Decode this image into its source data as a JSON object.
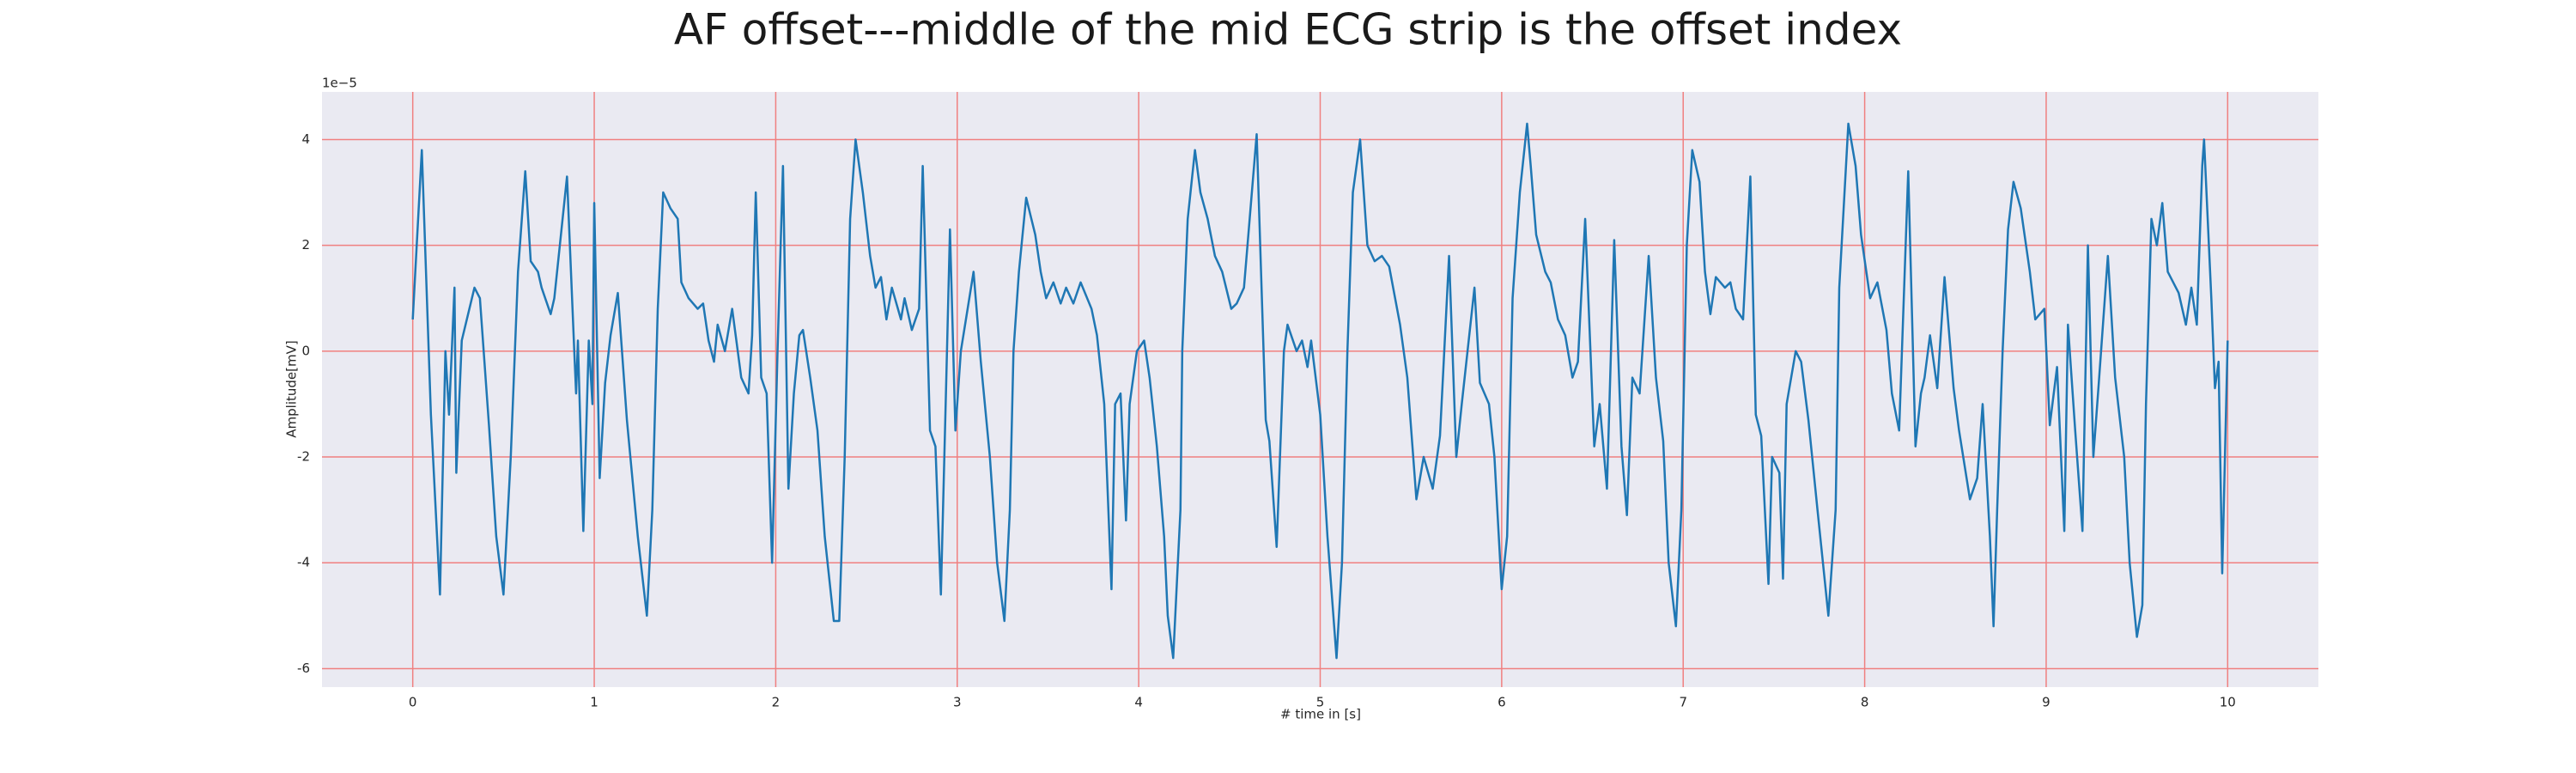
{
  "chart_data": {
    "type": "line",
    "title": "AF offset---middle of the mid ECG strip is the offset index",
    "xlabel": "# time in [s]",
    "ylabel": "Amplitude[mV]",
    "y_offset_text": "1e−5",
    "color": "#1f77b4",
    "grid": true,
    "grid_color": "#f08080",
    "xlim": [
      -0.5,
      10.5
    ],
    "ylim": [
      -6.35,
      4.9
    ],
    "xticks": [
      0,
      1,
      2,
      3,
      4,
      5,
      6,
      7,
      8,
      9,
      10
    ],
    "yticks": [
      -6,
      -4,
      -2,
      0,
      2,
      4
    ],
    "x": [
      0,
      0.05,
      0.1,
      0.15,
      0.18,
      0.2,
      0.23,
      0.24,
      0.27,
      0.34,
      0.37,
      0.42,
      0.46,
      0.5,
      0.54,
      0.58,
      0.62,
      0.65,
      0.69,
      0.71,
      0.76,
      0.78,
      0.85,
      0.89,
      0.9,
      0.91,
      0.94,
      0.97,
      0.99,
      1.0,
      1.03,
      1.06,
      1.09,
      1.13,
      1.18,
      1.24,
      1.29,
      1.32,
      1.35,
      1.38,
      1.42,
      1.46,
      1.48,
      1.52,
      1.57,
      1.6,
      1.63,
      1.66,
      1.68,
      1.72,
      1.76,
      1.81,
      1.85,
      1.87,
      1.89,
      1.92,
      1.95,
      1.98,
      2.01,
      2.04,
      2.07,
      2.1,
      2.13,
      2.15,
      2.19,
      2.23,
      2.27,
      2.32,
      2.35,
      2.38,
      2.41,
      2.44,
      2.48,
      2.52,
      2.55,
      2.58,
      2.61,
      2.64,
      2.69,
      2.71,
      2.75,
      2.79,
      2.81,
      2.85,
      2.88,
      2.91,
      2.94,
      2.96,
      2.99,
      3.02,
      3.09,
      3.13,
      3.18,
      3.22,
      3.26,
      3.29,
      3.31,
      3.34,
      3.38,
      3.43,
      3.46,
      3.49,
      3.53,
      3.57,
      3.6,
      3.64,
      3.68,
      3.74,
      3.77,
      3.81,
      3.85,
      3.87,
      3.9,
      3.93,
      3.95,
      3.99,
      4.03,
      4.06,
      4.1,
      4.14,
      4.16,
      4.19,
      4.23,
      4.24,
      4.27,
      4.31,
      4.34,
      4.38,
      4.42,
      4.46,
      4.51,
      4.54,
      4.58,
      4.65,
      4.7,
      4.72,
      4.76,
      4.8,
      4.82,
      4.87,
      4.9,
      4.93,
      4.95,
      5.0,
      5.04,
      5.09,
      5.12,
      5.15,
      5.18,
      5.22,
      5.26,
      5.3,
      5.34,
      5.38,
      5.44,
      5.48,
      5.53,
      5.57,
      5.62,
      5.66,
      5.71,
      5.75,
      5.78,
      5.85,
      5.88,
      5.93,
      5.96,
      6.0,
      6.03,
      6.06,
      6.1,
      6.14,
      6.16,
      6.19,
      6.24,
      6.27,
      6.31,
      6.35,
      6.39,
      6.42,
      6.46,
      6.51,
      6.54,
      6.58,
      6.62,
      6.66,
      6.69,
      6.72,
      6.76,
      6.81,
      6.85,
      6.89,
      6.92,
      6.96,
      6.99,
      7.02,
      7.05,
      7.09,
      7.12,
      7.15,
      7.18,
      7.23,
      7.26,
      7.29,
      7.33,
      7.37,
      7.4,
      7.43,
      7.47,
      7.49,
      7.53,
      7.55,
      7.57,
      7.62,
      7.65,
      7.69,
      7.74,
      7.8,
      7.84,
      7.86,
      7.91,
      7.95,
      7.98,
      8.03,
      8.07,
      8.12,
      8.15,
      8.19,
      8.24,
      8.28,
      8.31,
      8.33,
      8.36,
      8.4,
      8.44,
      8.49,
      8.52,
      8.58,
      8.62,
      8.65,
      8.69,
      8.71,
      8.73,
      8.76,
      8.79,
      8.82,
      8.86,
      8.91,
      8.94,
      8.99,
      9.02,
      9.06,
      9.1,
      9.12,
      9.16,
      9.2,
      9.23,
      9.26,
      9.29,
      9.34,
      9.38,
      9.43,
      9.46,
      9.5,
      9.53,
      9.55,
      9.58,
      9.61,
      9.64,
      9.67,
      9.73,
      9.77,
      9.8,
      9.83,
      9.86,
      9.87,
      9.91,
      9.93,
      9.95,
      9.97,
      10.0
    ],
    "values": [
      0.6,
      3.8,
      -1.2,
      -4.6,
      0,
      -1.2,
      1.2,
      -2.3,
      0.2,
      1.2,
      1.0,
      -1.4,
      -3.5,
      -4.6,
      -2,
      1.5,
      3.4,
      1.7,
      1.5,
      1.2,
      0.7,
      1.0,
      3.3,
      0,
      -0.8,
      0.2,
      -3.4,
      0.2,
      -1,
      2.8,
      -2.4,
      -0.6,
      0.3,
      1.1,
      -1.3,
      -3.5,
      -5,
      -3,
      0.8,
      3,
      2.7,
      2.5,
      1.3,
      1,
      0.8,
      0.9,
      0.2,
      -0.2,
      0.5,
      0,
      0.8,
      -0.5,
      -0.8,
      0.3,
      3,
      -0.5,
      -0.8,
      -4,
      0,
      3.5,
      -2.6,
      -0.8,
      0.3,
      0.4,
      -0.5,
      -1.5,
      -3.5,
      -5.1,
      -5.1,
      -2,
      2.5,
      4,
      3,
      1.8,
      1.2,
      1.4,
      0.6,
      1.2,
      0.6,
      1,
      0.4,
      0.8,
      3.5,
      -1.5,
      -1.8,
      -4.6,
      -0.5,
      2.3,
      -1.5,
      0,
      1.5,
      -0.2,
      -2,
      -4,
      -5.1,
      -3,
      0,
      1.5,
      2.9,
      2.2,
      1.5,
      1,
      1.3,
      0.9,
      1.2,
      0.9,
      1.3,
      0.8,
      0.3,
      -1,
      -4.5,
      -1,
      -0.8,
      -3.2,
      -1,
      0,
      0.2,
      -0.5,
      -1.8,
      -3.5,
      -5,
      -5.8,
      -3,
      0,
      2.5,
      3.8,
      3,
      2.5,
      1.8,
      1.5,
      0.8,
      0.9,
      1.2,
      4.1,
      -1.3,
      -1.7,
      -3.7,
      0,
      0.5,
      0,
      0.2,
      -0.3,
      0.2,
      -1.2,
      -3.5,
      -5.8,
      -4,
      0,
      3,
      4,
      2,
      1.7,
      1.8,
      1.6,
      0.5,
      -0.5,
      -2.8,
      -2,
      -2.6,
      -1.6,
      1.8,
      -2,
      -1,
      1.2,
      -0.6,
      -1,
      -2,
      -4.5,
      -3.5,
      1,
      3,
      4.3,
      3.5,
      2.2,
      1.5,
      1.3,
      0.6,
      0.3,
      -0.5,
      -0.2,
      2.5,
      -1.8,
      -1,
      -2.6,
      2.1,
      -1.8,
      -3.1,
      -0.5,
      -0.8,
      1.8,
      -0.5,
      -1.7,
      -4,
      -5.2,
      -3,
      2,
      3.8,
      3.2,
      1.5,
      0.7,
      1.4,
      1.2,
      1.3,
      0.8,
      0.6,
      3.3,
      -1.2,
      -1.6,
      -4.4,
      -2,
      -2.3,
      -4.3,
      -1,
      0,
      -0.2,
      -1.3,
      -3,
      -5,
      -3,
      1.2,
      4.3,
      3.5,
      2.2,
      1,
      1.3,
      0.4,
      -0.8,
      -1.5,
      3.4,
      -1.8,
      -0.8,
      -0.5,
      0.3,
      -0.7,
      1.4,
      -0.7,
      -1.5,
      -2.8,
      -2.4,
      -1,
      -3.5,
      -5.2,
      -3,
      0,
      2.3,
      3.2,
      2.7,
      1.5,
      0.6,
      0.8,
      -1.4,
      -0.3,
      -3.4,
      0.5,
      -1.5,
      -3.4,
      2,
      -2,
      -0.6,
      1.8,
      -0.5,
      -2,
      -4,
      -5.4,
      -4.8,
      -1,
      2.5,
      2,
      2.8,
      1.5,
      1.1,
      0.5,
      1.2,
      0.5,
      3.5,
      4,
      1,
      -0.7,
      -0.2,
      -4.2,
      0.2
    ]
  }
}
